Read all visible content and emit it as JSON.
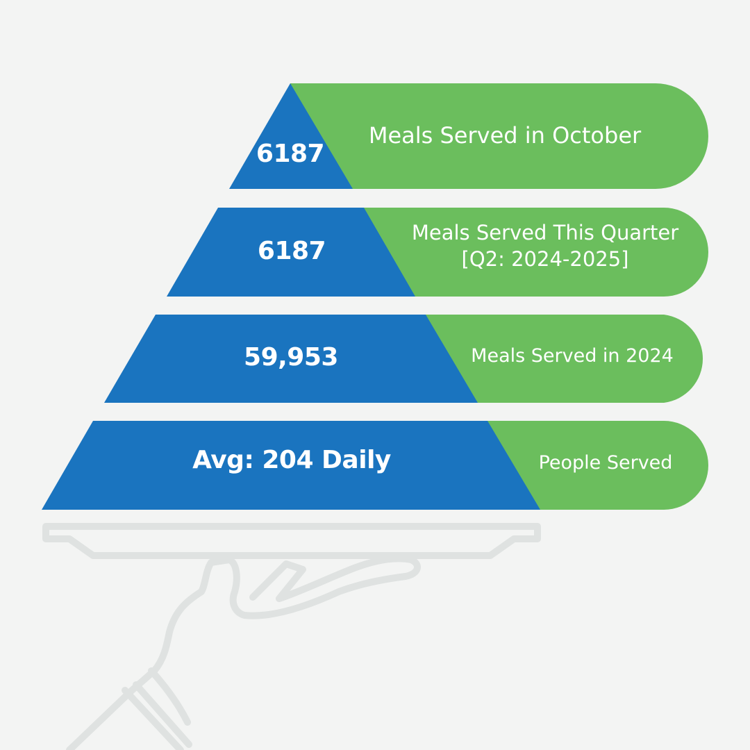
{
  "colors": {
    "background": "#f3f4f3",
    "blue": "#1a74bf",
    "green": "#6bbe5d",
    "hand_outline": "#dfe2e1",
    "text": "#ffffff"
  },
  "tiers": [
    {
      "value": "6187",
      "label": "Meals Served in October"
    },
    {
      "value": "6187",
      "label": "Meals Served This Quarter",
      "label_line2": "[Q2: 2024-2025]"
    },
    {
      "value": "59,953",
      "label": "Meals Served in 2024"
    },
    {
      "value": "Avg: 204 Daily",
      "label": "People Served"
    }
  ]
}
